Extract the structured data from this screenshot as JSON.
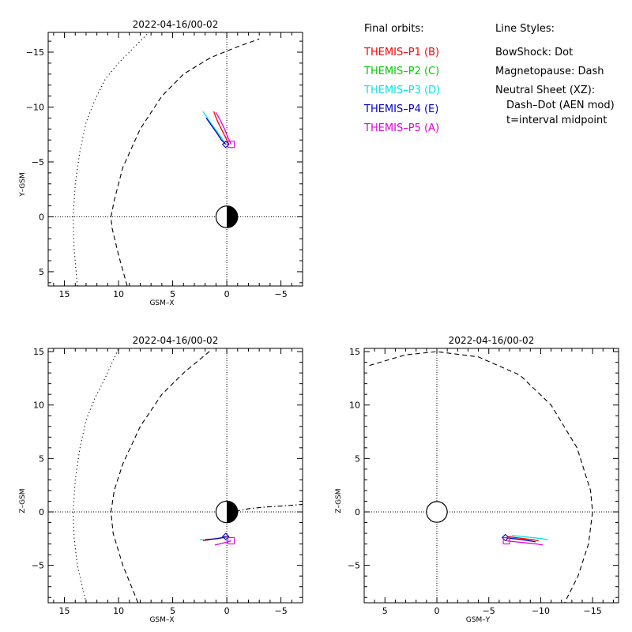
{
  "legend": {
    "heading": "Final orbits:",
    "items": [
      {
        "label": "THEMIS–P1 (B)",
        "color": "#ff0000"
      },
      {
        "label": "THEMIS–P2 (C)",
        "color": "#00cc00"
      },
      {
        "label": "THEMIS–P3 (D)",
        "color": "#00e5e5"
      },
      {
        "label": "THEMIS–P4 (E)",
        "color": "#0000cc"
      },
      {
        "label": "THEMIS–P5 (A)",
        "color": "#e000e0"
      }
    ]
  },
  "line_styles": {
    "heading": "Line Styles:",
    "lines": [
      "BowShock: Dot",
      "Magnetopause: Dash",
      "Neutral Sheet (XZ):",
      "Dash–Dot (AEN mod)",
      "t=interval midpoint"
    ]
  },
  "chart_data": [
    {
      "type": "line",
      "title": "2022-04-16/00-02",
      "xlabel": "GSM–X",
      "ylabel": "Y–GSM",
      "xlim": [
        16.5,
        -7
      ],
      "ylim": [
        6.3,
        -16.8
      ],
      "x_ticks": [
        15,
        10,
        5,
        0,
        -5
      ],
      "x_tick_labels": [
        "15",
        "10",
        "5",
        "0",
        "−5"
      ],
      "y_ticks": [
        -15,
        -10,
        -5,
        0,
        5
      ],
      "y_tick_labels": [
        "−15",
        "−10",
        "−5",
        "0",
        "5"
      ],
      "grid": "dotted lines through origin",
      "boundaries": [
        {
          "name": "bow shock",
          "style": "dot",
          "x": [
            13.8,
            14.1,
            14.2,
            14.0,
            13.6,
            13.0,
            12.2,
            11.2,
            10.0,
            8.4,
            7.2
          ],
          "y": [
            6.3,
            3.0,
            0,
            -3.0,
            -5.8,
            -8.6,
            -10.6,
            -12.6,
            -14.0,
            -15.6,
            -16.8
          ]
        },
        {
          "name": "magnetopause",
          "style": "dash",
          "x": [
            9.2,
            10.0,
            10.6,
            10.7,
            10.4,
            9.6,
            8.0,
            6.0,
            4.0,
            1.5,
            -1.0,
            -3.0
          ],
          "y": [
            6.3,
            3.5,
            1.0,
            0,
            -1.5,
            -4.5,
            -8.0,
            -11.0,
            -13.0,
            -14.5,
            -15.5,
            -16.2
          ]
        }
      ],
      "orbits": [
        {
          "probe": "THEMIS-P1 (B)",
          "x": [
            1.2,
            0.9,
            0.5,
            0.1,
            -0.2
          ],
          "y": [
            -9.6,
            -8.8,
            -8.0,
            -7.2,
            -6.6
          ]
        },
        {
          "probe": "THEMIS-P3 (D)",
          "x": [
            2.2,
            1.6,
            1.0,
            0.5,
            0.1
          ],
          "y": [
            -9.6,
            -8.7,
            -7.9,
            -7.2,
            -6.6
          ]
        },
        {
          "probe": "THEMIS-P4 (E)",
          "x": [
            1.9,
            1.4,
            0.9,
            0.5,
            0.1
          ],
          "y": [
            -9.0,
            -8.3,
            -7.6,
            -7.0,
            -6.6
          ]
        },
        {
          "probe": "THEMIS-P5 (A)",
          "x": [
            1.0,
            0.6,
            0.2,
            -0.1,
            -0.4
          ],
          "y": [
            -9.5,
            -8.8,
            -8.0,
            -7.2,
            -6.6
          ]
        }
      ],
      "markers": [
        {
          "probe": "THEMIS-P4 (E)",
          "shape": "diamond",
          "x": 0.1,
          "y": -6.6
        },
        {
          "probe": "THEMIS-P5 (A)",
          "shape": "square",
          "x": -0.4,
          "y": -6.6
        }
      ],
      "earth": {
        "x": 0,
        "y": 0,
        "radius": 1,
        "dark_side": "negative-x"
      }
    },
    {
      "type": "line",
      "title": "2022-04-16/00-02",
      "xlabel": "GSM–X",
      "ylabel": "Z–GSM",
      "xlim": [
        16.5,
        -7
      ],
      "ylim": [
        -8.5,
        15.3
      ],
      "x_ticks": [
        15,
        10,
        5,
        0,
        -5
      ],
      "x_tick_labels": [
        "15",
        "10",
        "5",
        "0",
        "−5"
      ],
      "y_ticks": [
        -5,
        0,
        5,
        10,
        15
      ],
      "y_tick_labels": [
        "−5",
        "0",
        "5",
        "10",
        "15"
      ],
      "grid": "dotted lines through origin",
      "boundaries": [
        {
          "name": "bow shock",
          "style": "dot",
          "x": [
            13.0,
            13.8,
            14.1,
            14.2,
            14.0,
            13.6,
            13.0,
            12.2,
            11.2,
            10.0
          ],
          "y": [
            -8.5,
            -5.0,
            -2.5,
            0,
            3.0,
            5.8,
            8.6,
            10.6,
            12.6,
            15.3
          ]
        },
        {
          "name": "magnetopause",
          "style": "dash",
          "x": [
            8.2,
            9.6,
            10.5,
            10.7,
            10.4,
            9.6,
            8.0,
            6.0,
            4.0,
            1.5
          ],
          "y": [
            -8.5,
            -5.0,
            -2.0,
            0,
            2.0,
            4.5,
            8.0,
            11.0,
            13.0,
            15.1
          ]
        },
        {
          "name": "neutral sheet",
          "style": "dash-dot",
          "x": [
            -0.8,
            -2.0,
            -3.5,
            -5.0,
            -7.0
          ],
          "y": [
            0.05,
            0.3,
            0.45,
            0.55,
            0.7
          ]
        }
      ],
      "orbits": [
        {
          "probe": "THEMIS-P1 (B)",
          "x": [
            2.2,
            1.6,
            1.0,
            0.3,
            -0.2
          ],
          "y": [
            -2.7,
            -2.6,
            -2.5,
            -2.4,
            -2.3
          ]
        },
        {
          "probe": "THEMIS-P3 (D)",
          "x": [
            2.5,
            1.9,
            1.2,
            0.6,
            0.1
          ],
          "y": [
            -2.6,
            -2.6,
            -2.55,
            -2.45,
            -2.3
          ]
        },
        {
          "probe": "THEMIS-P4 (E)",
          "x": [
            2.0,
            1.5,
            0.9,
            0.4,
            0.1
          ],
          "y": [
            -2.6,
            -2.55,
            -2.5,
            -2.4,
            -2.3
          ]
        },
        {
          "probe": "THEMIS-P5 (A)",
          "x": [
            1.1,
            0.7,
            0.3,
            -0.1,
            -0.4
          ],
          "y": [
            -3.1,
            -3.0,
            -2.9,
            -2.8,
            -2.7
          ]
        }
      ],
      "markers": [
        {
          "probe": "THEMIS-P4 (E)",
          "shape": "diamond",
          "x": 0.1,
          "y": -2.3
        },
        {
          "probe": "THEMIS-P5 (A)",
          "shape": "square",
          "x": -0.4,
          "y": -2.7
        }
      ],
      "earth": {
        "x": 0,
        "y": 0,
        "radius": 1,
        "dark_side": "negative-x"
      }
    },
    {
      "type": "line",
      "title": "2022-04-16/00-02",
      "xlabel": "GSM–Y",
      "ylabel": "Z–GSM",
      "xlim": [
        7,
        -17.5
      ],
      "ylim": [
        -8.5,
        15.3
      ],
      "x_ticks": [
        5,
        0,
        -5,
        -10,
        -15
      ],
      "x_tick_labels": [
        "5",
        "0",
        "−5",
        "−10",
        "−15"
      ],
      "y_ticks": [
        -5,
        0,
        5,
        10,
        15
      ],
      "y_tick_labels": [
        "−5",
        "0",
        "5",
        "10",
        "15"
      ],
      "grid": "dotted lines through origin",
      "boundaries": [
        {
          "name": "magnetopause",
          "style": "dash",
          "x": [
            6.5,
            3.0,
            0,
            -4.0,
            -8.0,
            -11.0,
            -13.5,
            -14.8,
            -15.0,
            -14.6,
            -13.6,
            -12.3
          ],
          "y": [
            13.7,
            14.7,
            15.0,
            14.5,
            12.8,
            10.0,
            6.0,
            2.0,
            0,
            -3.0,
            -6.0,
            -8.5
          ]
        }
      ],
      "orbits": [
        {
          "probe": "THEMIS-P1 (B)",
          "x": [
            -6.8,
            -7.6,
            -8.4,
            -9.2,
            -9.8
          ],
          "y": [
            -2.3,
            -2.4,
            -2.5,
            -2.6,
            -2.7
          ]
        },
        {
          "probe": "THEMIS-P3 (D)",
          "x": [
            -7.2,
            -8.2,
            -9.2,
            -10.1,
            -10.7
          ],
          "y": [
            -2.2,
            -2.3,
            -2.4,
            -2.5,
            -2.6
          ]
        },
        {
          "probe": "THEMIS-P4 (E)",
          "x": [
            -6.6,
            -7.4,
            -8.2,
            -8.9,
            -9.5
          ],
          "y": [
            -2.4,
            -2.5,
            -2.6,
            -2.7,
            -2.8
          ]
        },
        {
          "probe": "THEMIS-P5 (A)",
          "x": [
            -6.7,
            -7.6,
            -8.6,
            -9.6,
            -10.2
          ],
          "y": [
            -2.7,
            -2.8,
            -2.9,
            -3.0,
            -3.1
          ]
        }
      ],
      "markers": [
        {
          "probe": "THEMIS-P4 (E)",
          "shape": "diamond",
          "x": -6.6,
          "y": -2.4
        },
        {
          "probe": "THEMIS-P5 (A)",
          "shape": "square",
          "x": -6.7,
          "y": -2.7
        }
      ],
      "earth": {
        "x": 0,
        "y": 0,
        "radius": 1,
        "dark_side": "none"
      }
    }
  ]
}
